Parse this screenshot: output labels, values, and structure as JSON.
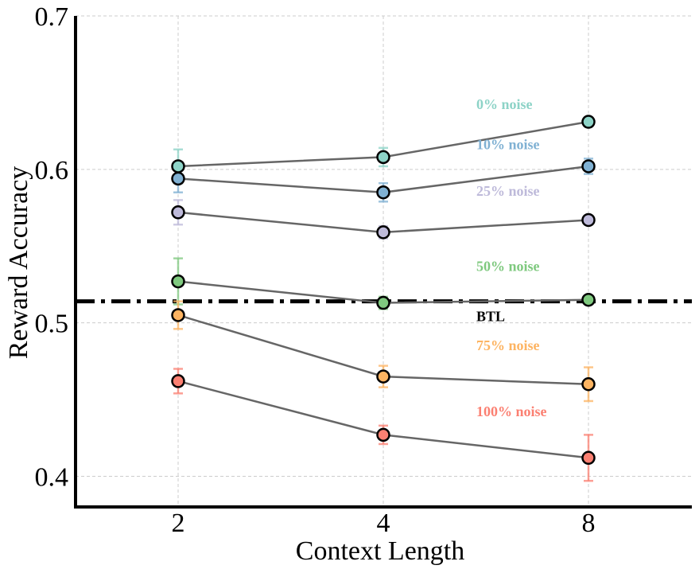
{
  "chart_data": {
    "type": "line",
    "xlabel": "Context Length",
    "ylabel": "Reward Accuracy",
    "categories": [
      "2",
      "4",
      "8"
    ],
    "ylim": [
      0.38,
      0.7
    ],
    "yticks": [
      0.4,
      0.5,
      0.6,
      0.7
    ],
    "ytick_labels": [
      "0.4",
      "0.5",
      "0.6",
      "0.7"
    ],
    "grid": true,
    "baseline": {
      "name": "BTL",
      "value": 0.514,
      "color": "#000000"
    },
    "series": [
      {
        "name": "0% noise",
        "color": "#8dd3c7",
        "values": [
          0.602,
          0.608,
          0.631
        ],
        "errors": [
          0.011,
          0.006,
          0.003
        ]
      },
      {
        "name": "10% noise",
        "color": "#80b1d3",
        "values": [
          0.594,
          0.585,
          0.602
        ],
        "errors": [
          0.009,
          0.006,
          0.005
        ]
      },
      {
        "name": "25% noise",
        "color": "#bebada",
        "values": [
          0.572,
          0.559,
          0.567
        ],
        "errors": [
          0.008,
          0.004,
          0.003
        ]
      },
      {
        "name": "50% noise",
        "color": "#7fc97f",
        "values": [
          0.527,
          0.513,
          0.515
        ],
        "errors": [
          0.015,
          0.004,
          0.002
        ]
      },
      {
        "name": "75% noise",
        "color": "#fdb462",
        "values": [
          0.505,
          0.465,
          0.46
        ],
        "errors": [
          0.009,
          0.007,
          0.011
        ]
      },
      {
        "name": "100% noise",
        "color": "#fb8072",
        "values": [
          0.462,
          0.427,
          0.412
        ],
        "errors": [
          0.008,
          0.006,
          0.015
        ]
      }
    ]
  }
}
